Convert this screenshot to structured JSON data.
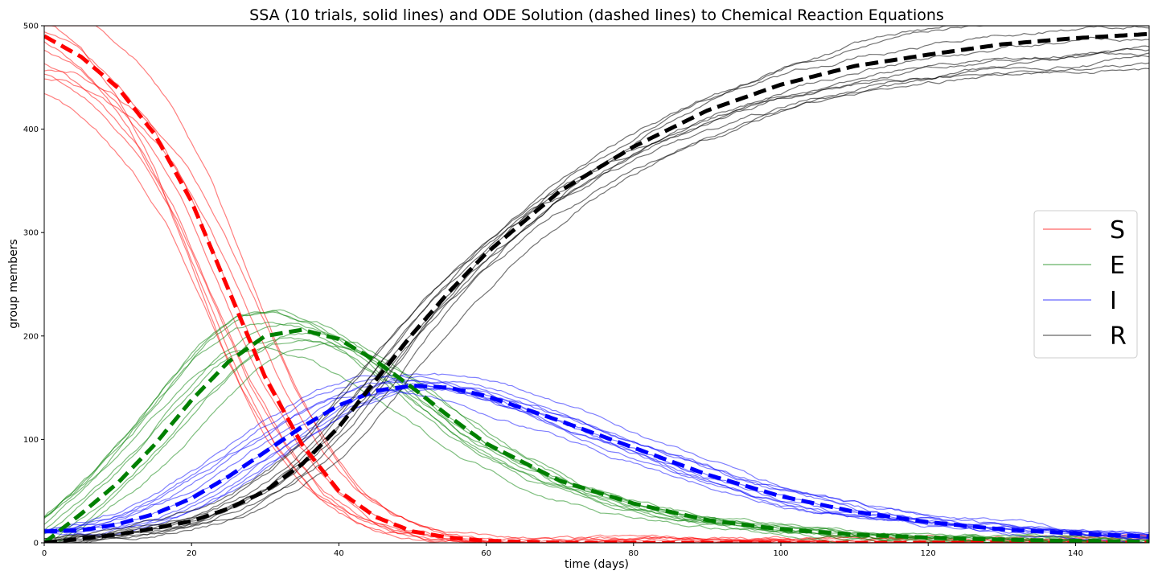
{
  "chart_data": {
    "type": "line",
    "title": "SSA (10 trials, solid lines) and ODE Solution (dashed lines) to Chemical Reaction Equations",
    "xlabel": "time (days)",
    "ylabel": "group members",
    "xlim": [
      0,
      150
    ],
    "ylim": [
      0,
      500
    ],
    "xticks": [
      0,
      20,
      40,
      60,
      80,
      100,
      120,
      140
    ],
    "yticks": [
      0,
      100,
      200,
      300,
      400,
      500
    ],
    "grid": false,
    "legend": {
      "placement": "center-right",
      "entries": [
        "S",
        "E",
        "I",
        "R"
      ]
    },
    "colors": {
      "S": "#ff0000",
      "E": "#008000",
      "I": "#0000ff",
      "R": "#000000"
    },
    "series": [
      {
        "name": "S",
        "x": [
          0,
          5,
          10,
          15,
          20,
          25,
          30,
          35,
          40,
          45,
          50,
          55,
          60,
          65,
          70,
          80,
          100,
          150
        ],
        "values": [
          490,
          470,
          440,
          395,
          330,
          245,
          160,
          95,
          50,
          25,
          11,
          5,
          2,
          1,
          0,
          0,
          0,
          0
        ]
      },
      {
        "name": "E",
        "x": [
          0,
          5,
          10,
          15,
          20,
          25,
          30,
          35,
          40,
          45,
          50,
          55,
          60,
          70,
          80,
          90,
          100,
          110,
          120,
          130,
          140,
          150
        ],
        "values": [
          0,
          28,
          58,
          95,
          138,
          175,
          200,
          206,
          197,
          176,
          150,
          122,
          96,
          60,
          38,
          22,
          13,
          8,
          5,
          3,
          2,
          1
        ]
      },
      {
        "name": "I",
        "x": [
          0,
          5,
          10,
          15,
          20,
          25,
          30,
          35,
          40,
          45,
          50,
          55,
          60,
          70,
          80,
          90,
          100,
          110,
          120,
          130,
          140,
          150
        ],
        "values": [
          11,
          12,
          18,
          28,
          43,
          64,
          88,
          112,
          133,
          147,
          152,
          150,
          142,
          118,
          92,
          66,
          45,
          30,
          20,
          13,
          9,
          6
        ]
      },
      {
        "name": "R",
        "x": [
          0,
          5,
          10,
          15,
          20,
          25,
          30,
          35,
          40,
          45,
          50,
          55,
          60,
          70,
          80,
          90,
          100,
          110,
          120,
          130,
          140,
          150
        ],
        "values": [
          0,
          4,
          8,
          14,
          21,
          33,
          50,
          76,
          112,
          157,
          202,
          243,
          280,
          340,
          383,
          418,
          443,
          461,
          472,
          482,
          488,
          492
        ]
      }
    ]
  }
}
